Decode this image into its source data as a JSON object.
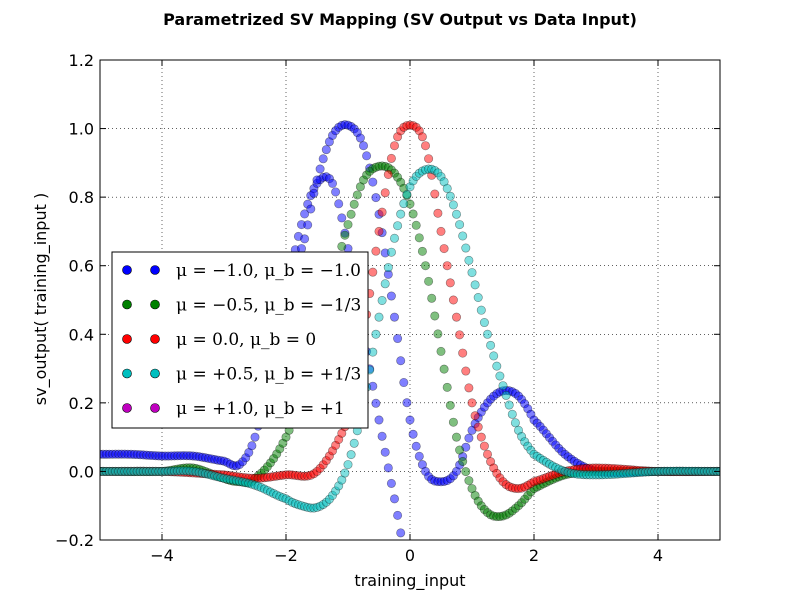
{
  "chart_data": {
    "type": "scatter",
    "title": "Parametrized SV Mapping (SV Output vs Data Input)",
    "xlabel": "training_input",
    "ylabel": "sv_output( training_input )",
    "xlim": [
      -5,
      5
    ],
    "ylim": [
      -0.2,
      1.2
    ],
    "xticks": [
      -4,
      -2,
      0,
      2,
      4
    ],
    "xtick_labels": [
      "−4",
      "−2",
      "0",
      "2",
      "4"
    ],
    "yticks": [
      -0.2,
      0.0,
      0.2,
      0.4,
      0.6,
      0.8,
      1.0,
      1.2
    ],
    "ytick_labels": [
      "−0.2",
      "0.0",
      "0.2",
      "0.4",
      "0.6",
      "0.8",
      "1.0",
      "1.2"
    ],
    "grid": true,
    "legend_position": "center-left",
    "series": [
      {
        "name": "μ = −1.0, μ_b = −1.0",
        "color": "#0000ff",
        "x": [
          -5.0,
          -4.5,
          -4.0,
          -3.5,
          -3.0,
          -2.75,
          -2.5,
          -2.25,
          -2.0,
          -1.75,
          -1.5,
          -1.25,
          -1.0,
          -0.75,
          -0.5,
          -0.25,
          0.0
        ],
        "y": [
          0.05,
          0.05,
          0.045,
          0.045,
          0.03,
          0.02,
          0.1,
          0.3,
          0.52,
          0.72,
          0.84,
          0.84,
          0.65,
          0.4,
          0.15,
          -0.08,
          -0.3
        ]
      },
      {
        "name": "μ = −1.0, μ_b = −1.0",
        "color": "#0000ff",
        "x": [
          -1.75,
          -1.5,
          -1.25,
          -1.0,
          -0.75,
          -0.5,
          -0.25,
          0.0,
          0.25,
          0.5,
          0.75,
          1.0,
          1.25,
          1.5,
          1.75,
          2.0,
          2.5,
          3.0,
          4.0,
          5.0
        ],
        "y": [
          0.65,
          0.85,
          0.98,
          1.01,
          0.95,
          0.75,
          0.45,
          0.15,
          0.0,
          -0.03,
          0.0,
          0.12,
          0.2,
          0.235,
          0.22,
          0.15,
          0.05,
          0.0,
          0.0,
          0.0
        ]
      },
      {
        "name": "μ = −0.5, μ_b = −1/3",
        "color": "#008000",
        "x": [
          -5.0,
          -4.0,
          -3.5,
          -3.0,
          -2.75,
          -2.5,
          -2.0,
          -1.5,
          -1.25,
          -1.0,
          -0.75,
          -0.5,
          -0.25,
          0.0,
          0.25,
          0.5,
          0.75,
          1.0,
          1.25,
          1.5,
          1.75,
          2.0,
          2.5,
          3.0,
          4.0,
          5.0
        ],
        "y": [
          0.0,
          0.0,
          0.01,
          -0.02,
          -0.03,
          -0.02,
          0.1,
          0.35,
          0.55,
          0.72,
          0.85,
          0.89,
          0.87,
          0.78,
          0.6,
          0.35,
          0.1,
          -0.05,
          -0.12,
          -0.13,
          -0.1,
          -0.05,
          -0.01,
          0.0,
          0.0,
          0.0
        ]
      },
      {
        "name": "μ = 0.0, μ_b = 0",
        "color": "#ff0000",
        "x": [
          -5.0,
          -4.0,
          -3.0,
          -2.5,
          -2.0,
          -1.5,
          -1.0,
          -0.75,
          -0.5,
          -0.25,
          0.0,
          0.25,
          0.5,
          0.75,
          1.0,
          1.25,
          1.5,
          1.75,
          2.0,
          2.5,
          3.0,
          4.0,
          5.0
        ],
        "y": [
          0.0,
          0.0,
          -0.01,
          -0.02,
          -0.01,
          0.0,
          0.15,
          0.4,
          0.7,
          0.95,
          1.01,
          0.95,
          0.7,
          0.45,
          0.2,
          0.05,
          -0.03,
          -0.05,
          -0.03,
          0.0,
          0.01,
          0.0,
          0.0
        ]
      },
      {
        "name": "μ = +0.5, μ_b = +1/3",
        "color": "#00bfbf",
        "x": [
          -5.0,
          -4.0,
          -3.5,
          -3.0,
          -2.5,
          -2.0,
          -1.75,
          -1.5,
          -1.25,
          -1.0,
          -0.75,
          -0.5,
          -0.25,
          0.0,
          0.25,
          0.5,
          0.75,
          1.0,
          1.25,
          1.5,
          1.75,
          2.0,
          2.5,
          3.0,
          4.0,
          5.0
        ],
        "y": [
          0.0,
          0.0,
          0.0,
          -0.02,
          -0.04,
          -0.08,
          -0.1,
          -0.105,
          -0.07,
          0.02,
          0.2,
          0.45,
          0.68,
          0.83,
          0.88,
          0.86,
          0.75,
          0.58,
          0.4,
          0.25,
          0.12,
          0.05,
          0.0,
          -0.01,
          0.0,
          0.0
        ]
      },
      {
        "name": "μ = +1.0, μ_b = +1",
        "color": "#bf00bf",
        "x": [],
        "y": []
      }
    ],
    "legend": [
      {
        "label": "μ = −1.0, μ_b = −1.0",
        "color": "#0000ff"
      },
      {
        "label": "μ = −0.5, μ_b = −1/3",
        "color": "#008000"
      },
      {
        "label": "μ = 0.0, μ_b = 0",
        "color": "#ff0000"
      },
      {
        "label": "μ = +0.5, μ_b = +1/3",
        "color": "#00bfbf"
      },
      {
        "label": "μ = +1.0, μ_b = +1",
        "color": "#bf00bf"
      }
    ]
  }
}
